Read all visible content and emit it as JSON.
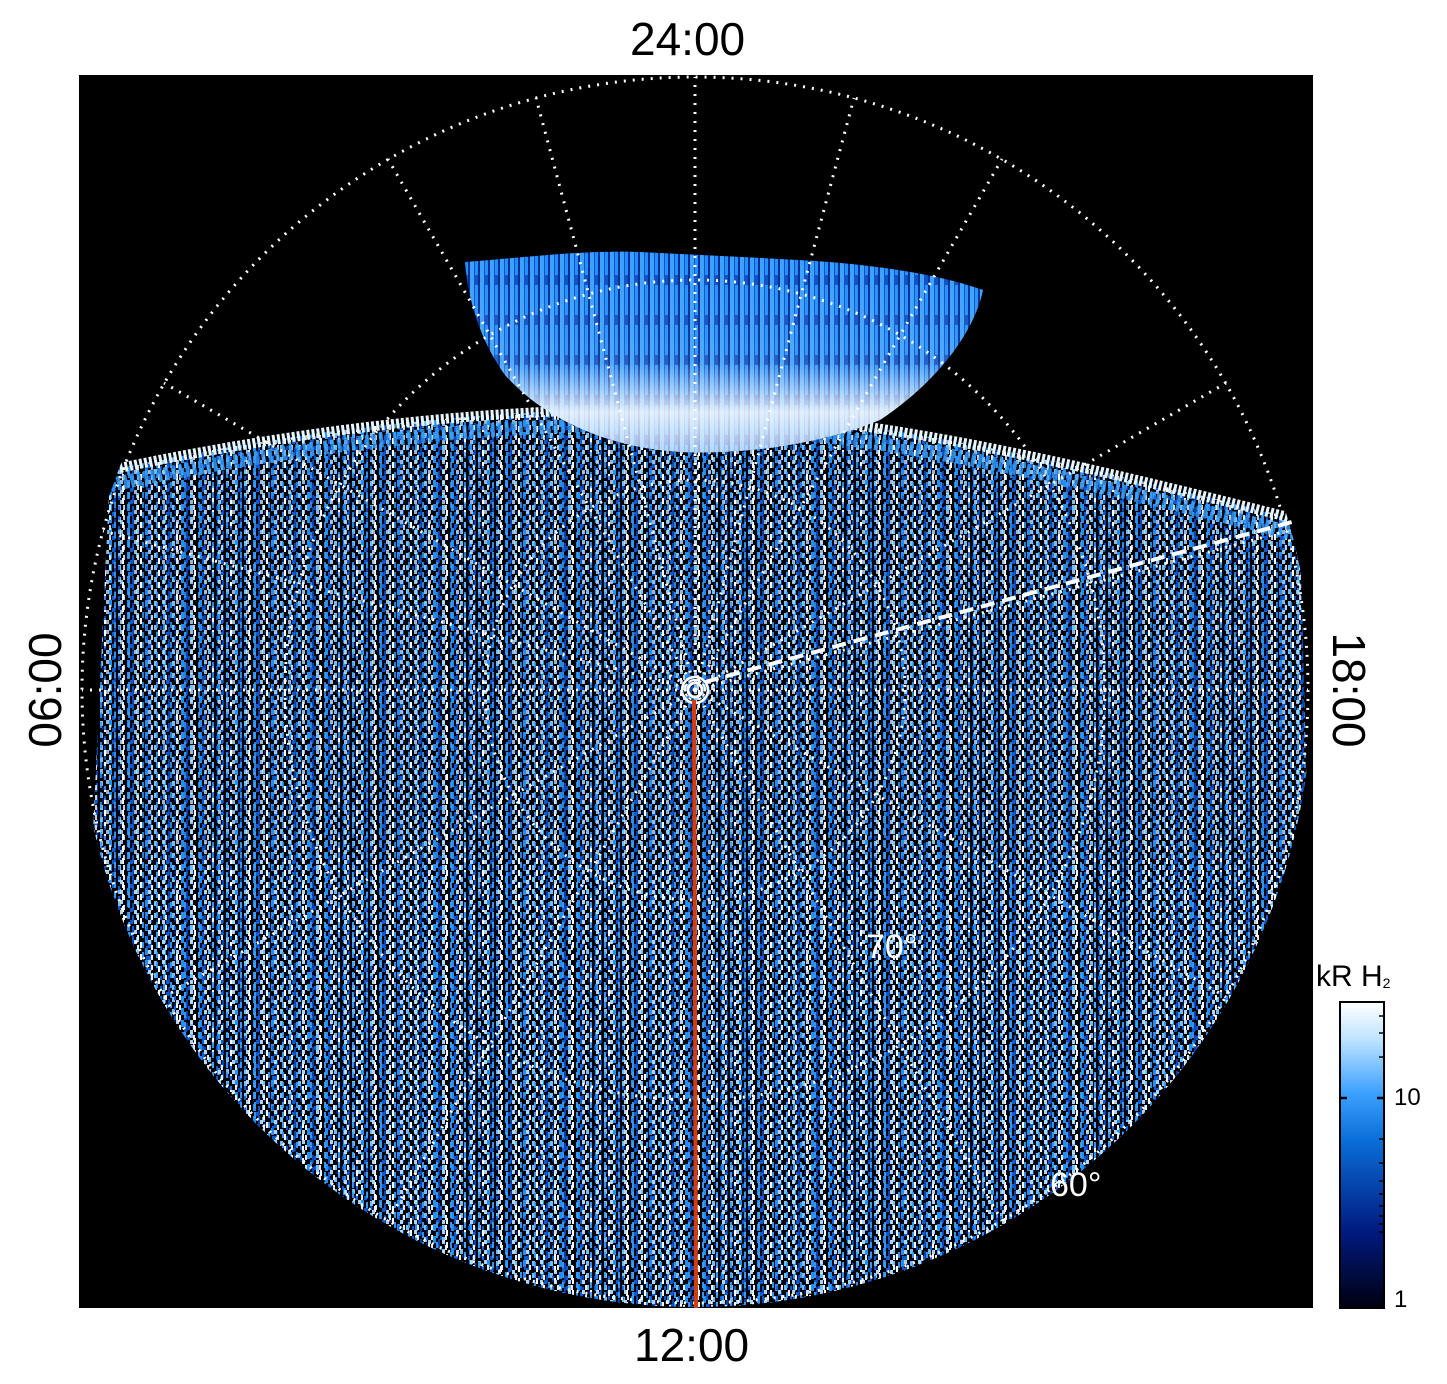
{
  "figure": {
    "local_time_labels": {
      "top": "24:00",
      "bottom": "12:00",
      "left": "06:00",
      "right": "18:00"
    },
    "latitude_labels": {
      "inner": "70°",
      "outer": "60°"
    },
    "colorbar": {
      "title": "kR H",
      "title_subscript": "2",
      "tick_labels": [
        "10",
        "1"
      ],
      "scale": "log",
      "colors": [
        "#000010",
        "#001a80",
        "#0a6fd8",
        "#3aa0ff",
        "#bfe4ff",
        "#ffffff"
      ]
    },
    "colors": {
      "background": "#000000",
      "grid": "#ffffff",
      "noon_line": "#d23c0f",
      "aurora_blue": "#1e8fff"
    }
  }
}
